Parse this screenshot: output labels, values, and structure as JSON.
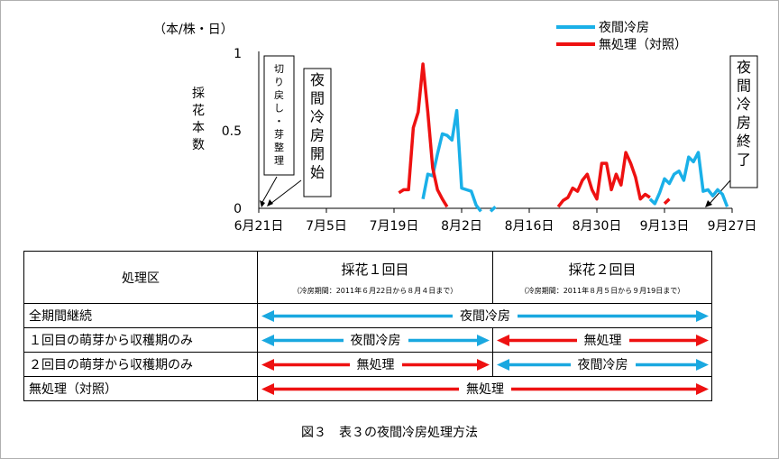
{
  "chart_data": {
    "type": "line",
    "ylabel": "採花本数",
    "unit": "（本/株・日）",
    "ylim": [
      0,
      1
    ],
    "yticks": [
      "0",
      "0.5",
      "1"
    ],
    "xticks": [
      "6月21日",
      "7月5日",
      "7月19日",
      "8月2日",
      "8月16日",
      "8月30日",
      "9月13日",
      "9月27日"
    ],
    "xlim": [
      0,
      98
    ],
    "legend_position": "top-right",
    "series": [
      {
        "name": "夜間冷房",
        "color": "#1ab0e8",
        "segments": [
          [
            [
              34,
              0.06
            ],
            [
              35,
              0.22
            ],
            [
              36,
              0.21
            ],
            [
              37,
              0.35
            ],
            [
              38,
              0.48
            ],
            [
              39,
              0.47
            ],
            [
              40,
              0.44
            ],
            [
              41,
              0.63
            ],
            [
              42,
              0.13
            ],
            [
              43,
              0.12
            ],
            [
              44,
              0.11
            ],
            [
              45,
              0.02
            ],
            [
              46,
              -0.02
            ]
          ],
          [
            [
              48,
              -0.02
            ],
            [
              49,
              0.01
            ]
          ],
          [
            [
              81,
              0.06
            ],
            [
              82,
              0.03
            ],
            [
              83,
              0.1
            ],
            [
              84,
              0.19
            ],
            [
              85,
              0.16
            ],
            [
              86,
              0.22
            ],
            [
              87,
              0.24
            ],
            [
              88,
              0.18
            ],
            [
              89,
              0.33
            ],
            [
              90,
              0.3
            ],
            [
              91,
              0.36
            ],
            [
              92,
              0.11
            ],
            [
              93,
              0.12
            ],
            [
              94,
              0.08
            ],
            [
              95,
              0.12
            ],
            [
              96,
              0.09
            ],
            [
              97,
              0.01
            ]
          ]
        ]
      },
      {
        "name": "無処理（対照）",
        "color": "#ee1111",
        "segments": [
          [
            [
              29,
              0.1
            ],
            [
              30,
              0.12
            ],
            [
              31,
              0.12
            ],
            [
              32,
              0.52
            ],
            [
              33,
              0.62
            ],
            [
              34,
              0.93
            ],
            [
              35,
              0.62
            ],
            [
              36,
              0.26
            ],
            [
              37,
              0.12
            ],
            [
              38,
              0.06
            ],
            [
              39,
              0.01
            ]
          ],
          [
            [
              62,
              0.01
            ],
            [
              63,
              0.05
            ],
            [
              64,
              0.07
            ],
            [
              65,
              0.13
            ],
            [
              66,
              0.11
            ],
            [
              67,
              0.18
            ],
            [
              68,
              0.22
            ],
            [
              69,
              0.12
            ],
            [
              70,
              0.06
            ],
            [
              71,
              0.29
            ],
            [
              72,
              0.29
            ],
            [
              73,
              0.12
            ],
            [
              74,
              0.22
            ],
            [
              75,
              0.15
            ],
            [
              76,
              0.36
            ],
            [
              77,
              0.29
            ],
            [
              78,
              0.2
            ],
            [
              79,
              0.06
            ],
            [
              80,
              0.09
            ],
            [
              81,
              0.07
            ]
          ],
          [
            [
              84,
              0.03
            ],
            [
              85,
              0.06
            ]
          ]
        ]
      }
    ],
    "annotations": [
      {
        "text": "切り戻し・芽整理",
        "x": 0
      },
      {
        "text": "夜間冷房開始",
        "x": 1
      },
      {
        "text": "夜間冷房終了",
        "x": 90
      }
    ]
  },
  "table": {
    "header": {
      "col0": "処理区",
      "col1_title": "採花１回目",
      "col1_sub": "（冷房期間：2011年６月22日から８月４日まで）",
      "col2_title": "採花２回目",
      "col2_sub": "（冷房期間：2011年８月５日から９月19日まで）"
    },
    "rows": [
      {
        "label": "全期間継続",
        "cells": [
          {
            "text": "夜間冷房",
            "color": "#1aa8e0",
            "span": 2
          }
        ]
      },
      {
        "label": "１回目の萌芽から収穫期のみ",
        "cells": [
          {
            "text": "夜間冷房",
            "color": "#1aa8e0",
            "span": 1
          },
          {
            "text": "無処理",
            "color": "#ee1111",
            "span": 1
          }
        ]
      },
      {
        "label": "２回目の萌芽から収穫期のみ",
        "cells": [
          {
            "text": "無処理",
            "color": "#ee1111",
            "span": 1
          },
          {
            "text": "夜間冷房",
            "color": "#1aa8e0",
            "span": 1
          }
        ]
      },
      {
        "label": "無処理（対照）",
        "cells": [
          {
            "text": "無処理",
            "color": "#ee1111",
            "span": 2
          }
        ]
      }
    ]
  },
  "caption": "図３　表３の夜間冷房処理方法"
}
